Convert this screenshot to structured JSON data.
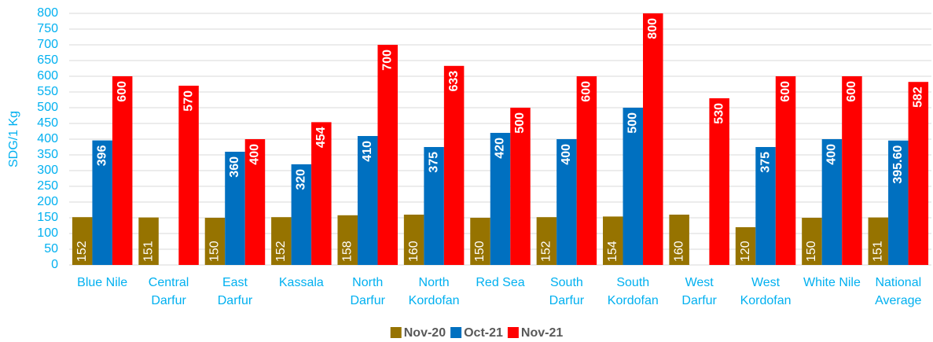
{
  "chart_data": {
    "type": "bar",
    "y_label": "SDG/1 Kg",
    "categories": [
      "Blue Nile",
      "Central Darfur",
      "East Darfur",
      "Kassala",
      "North Darfur",
      "North Kordofan",
      "Red Sea",
      "South Darfur",
      "South Kordofan",
      "West Darfur",
      "West Kordofan",
      "White Nile",
      "National Average"
    ],
    "series": [
      {
        "name": "Nov-20",
        "color": "#967300",
        "values": [
          152,
          151,
          150,
          152,
          158,
          160,
          150,
          152,
          154,
          160,
          120,
          150,
          151
        ]
      },
      {
        "name": "Oct-21",
        "color": "#0070C0",
        "values": [
          396,
          null,
          360,
          320,
          410,
          375,
          420,
          400,
          500,
          null,
          375,
          400,
          395.6
        ],
        "value_labels": [
          "396",
          null,
          "360",
          "320",
          "410",
          "375",
          "420",
          "400",
          "500",
          null,
          "375",
          "400",
          "395.60"
        ]
      },
      {
        "name": "Nov-21",
        "color": "#FF0000",
        "values": [
          600,
          570,
          400,
          454,
          700,
          633,
          500,
          600,
          800,
          530,
          600,
          600,
          582
        ]
      }
    ],
    "ylim": [
      0,
      800
    ],
    "yticks": [
      0,
      50,
      100,
      150,
      200,
      250,
      300,
      350,
      400,
      450,
      500,
      550,
      600,
      650,
      700,
      750,
      800
    ],
    "grid": true,
    "legend": "bottom"
  }
}
